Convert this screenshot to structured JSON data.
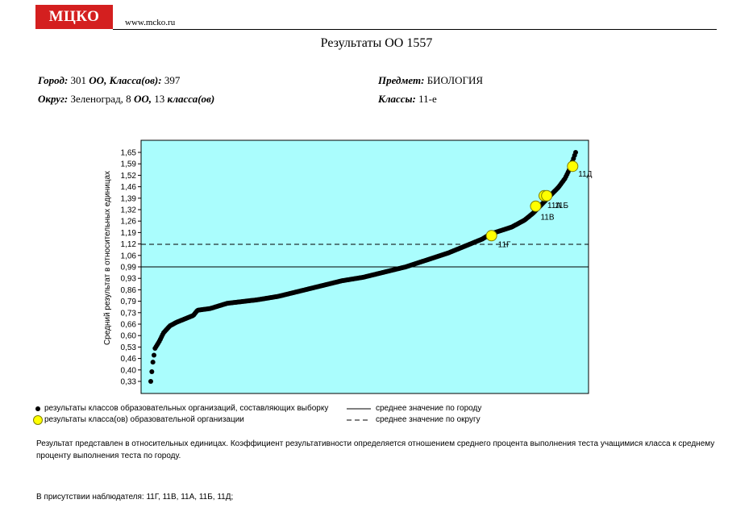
{
  "header": {
    "logo": "МЦКО",
    "site": "www.mcko.ru",
    "title": "Результаты ОО 1557"
  },
  "info": {
    "city_label": "Город:",
    "city_count": "301",
    "oo_classes_label": "ОО, Класса(ов):",
    "oo_classes_count": "397",
    "district_label": "Округ:",
    "district_value": "Зеленоград, 8",
    "district_oo_label": "ОО,",
    "district_classes_count": "13",
    "district_classes_label": "класса(ов)",
    "subject_label": "Предмет:",
    "subject_value": "БИОЛОГИЯ",
    "grades_label": "Классы:",
    "grades_value": "11-е"
  },
  "chart_data": {
    "type": "scatter",
    "ylabel": "Средний результат в относительных единицах",
    "ylim": [
      0.3,
      1.7
    ],
    "yticks": [
      "0,33",
      "0,40",
      "0,46",
      "0,53",
      "0,60",
      "0,66",
      "0,73",
      "0,79",
      "0,86",
      "0,93",
      "0,99",
      "1,06",
      "1,12",
      "1,19",
      "1,26",
      "1,32",
      "1,39",
      "1,46",
      "1,52",
      "1,59",
      "1,65"
    ],
    "grid": false,
    "background": "#aafdfd",
    "city_mean": 0.99,
    "district_mean": 1.12,
    "sample_curve": [
      [
        0.0,
        0.33
      ],
      [
        0.005,
        0.44
      ],
      [
        0.01,
        0.52
      ],
      [
        0.02,
        0.56
      ],
      [
        0.03,
        0.61
      ],
      [
        0.045,
        0.65
      ],
      [
        0.06,
        0.67
      ],
      [
        0.08,
        0.69
      ],
      [
        0.1,
        0.71
      ],
      [
        0.11,
        0.74
      ],
      [
        0.14,
        0.75
      ],
      [
        0.18,
        0.78
      ],
      [
        0.25,
        0.8
      ],
      [
        0.3,
        0.82
      ],
      [
        0.35,
        0.85
      ],
      [
        0.4,
        0.88
      ],
      [
        0.45,
        0.91
      ],
      [
        0.5,
        0.93
      ],
      [
        0.55,
        0.96
      ],
      [
        0.6,
        0.99
      ],
      [
        0.65,
        1.03
      ],
      [
        0.7,
        1.07
      ],
      [
        0.75,
        1.12
      ],
      [
        0.78,
        1.15
      ],
      [
        0.8,
        1.18
      ],
      [
        0.85,
        1.22
      ],
      [
        0.88,
        1.26
      ],
      [
        0.9,
        1.3
      ],
      [
        0.92,
        1.35
      ],
      [
        0.94,
        1.4
      ],
      [
        0.96,
        1.45
      ],
      [
        0.975,
        1.5
      ],
      [
        0.985,
        1.55
      ],
      [
        0.99,
        1.58
      ],
      [
        1.0,
        1.65
      ]
    ],
    "school_classes": [
      {
        "label": "11Г",
        "x": 0.802,
        "y": 1.17
      },
      {
        "label": "11В",
        "x": 0.906,
        "y": 1.34
      },
      {
        "label": "11А",
        "x": 0.926,
        "y": 1.4
      },
      {
        "label": "11Б",
        "x": 0.932,
        "y": 1.4
      },
      {
        "label": "11Д",
        "x": 0.993,
        "y": 1.57
      }
    ],
    "legend": {
      "sample": "результаты классов образовательных организаций, составляющих выборку",
      "school": "результаты класса(ов) образовательной организации",
      "city": "среднее значение по городу",
      "district": "среднее значение по округу"
    },
    "colors": {
      "sample": "#000000",
      "school_fill": "#ffff00",
      "school_stroke": "#808000"
    }
  },
  "notes": {
    "explanation": "Результат представлен в относительных единицах. Коэффициент результативности определяется отношением среднего процента выполнения теста учащимися класса к среднему проценту выполнения теста по городу.",
    "observer": "В присутствии наблюдателя: 11Г, 11В, 11А, 11Б, 11Д;"
  }
}
